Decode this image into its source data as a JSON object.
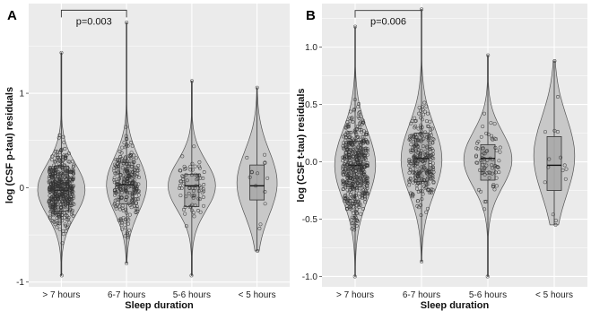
{
  "chart_data": [
    {
      "panel": "A",
      "type": "violin",
      "xlabel": "Sleep duration",
      "ylabel": "log (CSF p-tau) residuals",
      "categories": [
        "> 7 hours",
        "6-7 hours",
        "5-6 hours",
        "< 5 hours"
      ],
      "ylim": [
        -1.05,
        1.95
      ],
      "yticks": [
        -1,
        0,
        1
      ],
      "grid": true,
      "annotation": {
        "text": "p=0.003",
        "from": 0,
        "to": 1,
        "y": 1.88
      },
      "groups": [
        {
          "min": -0.93,
          "q1": -0.25,
          "median": -0.03,
          "q3": 0.23,
          "max": 1.43,
          "n": 480,
          "vmax": 0.66,
          "peak": -0.02,
          "spread": 0.27
        },
        {
          "min": -0.8,
          "q1": -0.17,
          "median": 0.03,
          "q3": 0.27,
          "max": 1.75,
          "n": 260,
          "vmax": 0.56,
          "peak": 0.03,
          "spread": 0.29
        },
        {
          "min": -0.93,
          "q1": -0.2,
          "median": 0.02,
          "q3": 0.14,
          "max": 1.13,
          "n": 75,
          "vmax": 0.66,
          "peak": 0.02,
          "spread": 0.26
        },
        {
          "min": -0.67,
          "q1": -0.13,
          "median": 0.02,
          "q3": 0.24,
          "max": 1.06,
          "n": 16,
          "vmax": 0.56,
          "peak": 0.05,
          "spread": 0.34
        }
      ]
    },
    {
      "panel": "B",
      "type": "violin",
      "xlabel": "Sleep duration",
      "ylabel": "log (CSF t-tau) residuals",
      "categories": [
        "> 7 hours",
        "6-7 hours",
        "5-6 hours",
        "< 5 hours"
      ],
      "ylim": [
        -1.09,
        1.38
      ],
      "yticks": [
        -1.0,
        -0.5,
        0.0,
        0.5,
        1.0
      ],
      "grid": true,
      "annotation": {
        "text": "p=0.006",
        "from": 0,
        "to": 1,
        "y": 1.32
      },
      "groups": [
        {
          "min": -1.0,
          "q1": -0.22,
          "median": -0.03,
          "q3": 0.18,
          "max": 1.18,
          "n": 480,
          "vmax": 0.56,
          "peak": -0.03,
          "spread": 0.3
        },
        {
          "min": -0.87,
          "q1": -0.17,
          "median": 0.03,
          "q3": 0.25,
          "max": 1.33,
          "n": 260,
          "vmax": 0.56,
          "peak": 0.02,
          "spread": 0.3
        },
        {
          "min": -1.0,
          "q1": -0.16,
          "median": 0.03,
          "q3": 0.15,
          "max": 0.93,
          "n": 75,
          "vmax": 0.66,
          "peak": 0.02,
          "spread": 0.24
        },
        {
          "min": -0.55,
          "q1": -0.25,
          "median": -0.03,
          "q3": 0.22,
          "max": 0.88,
          "n": 16,
          "vmax": 0.56,
          "peak": 0.05,
          "spread": 0.34
        }
      ]
    }
  ],
  "colors": {
    "panel_bg": "#ebebeb",
    "grid": "#ffffff",
    "violin_fill": "#c8c8c8",
    "violin_stroke": "#555555",
    "box_fill": "#a9a9a9",
    "point": "#333333"
  }
}
